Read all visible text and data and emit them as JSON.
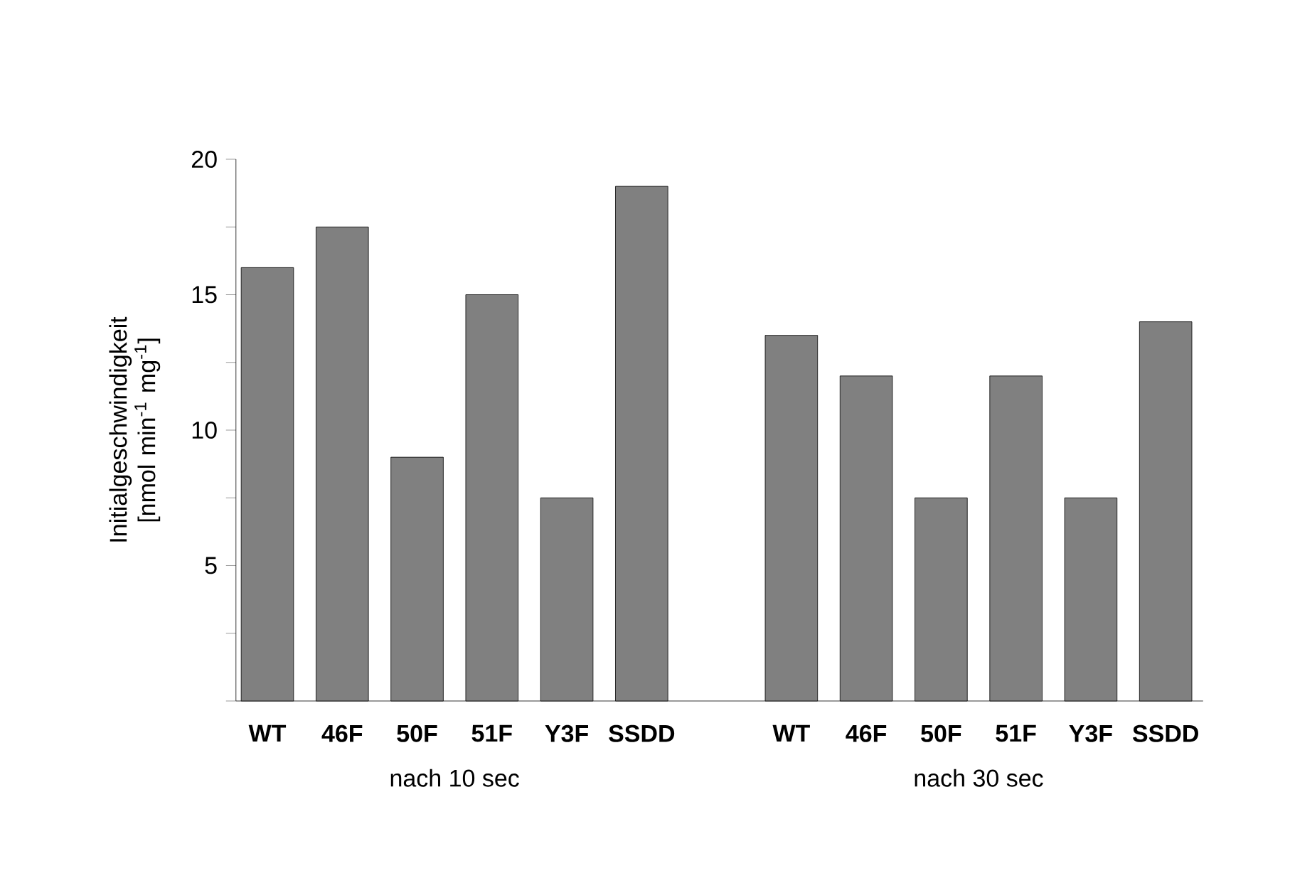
{
  "chart_data": {
    "type": "bar",
    "ylabel": "Initialgeschwindigkeit [nmol min$^{-1}$ mg$^{-1}$]",
    "categories": [
      "WT",
      "46F",
      "50F",
      "51F",
      "Y3F",
      "SSDD",
      null,
      "WT",
      "46F",
      "50F",
      "51F",
      "Y3F",
      "SSDD"
    ],
    "values": [
      16,
      17.5,
      9,
      15,
      7.5,
      19,
      null,
      13.5,
      12,
      7.5,
      12,
      7.5,
      14
    ],
    "color": "#808080",
    "ylim": [
      0,
      20
    ],
    "yticks": [
      {
        "value": 0,
        "label": null
      },
      {
        "value": 2.5,
        "label": null
      },
      5,
      {
        "value": 7.5,
        "label": null
      },
      10,
      {
        "value": 12.5,
        "label": null
      },
      15,
      {
        "value": 17.5,
        "label": null
      },
      20
    ],
    "annotations": [
      "nach 10 sec",
      "nach 30 sec"
    ]
  }
}
